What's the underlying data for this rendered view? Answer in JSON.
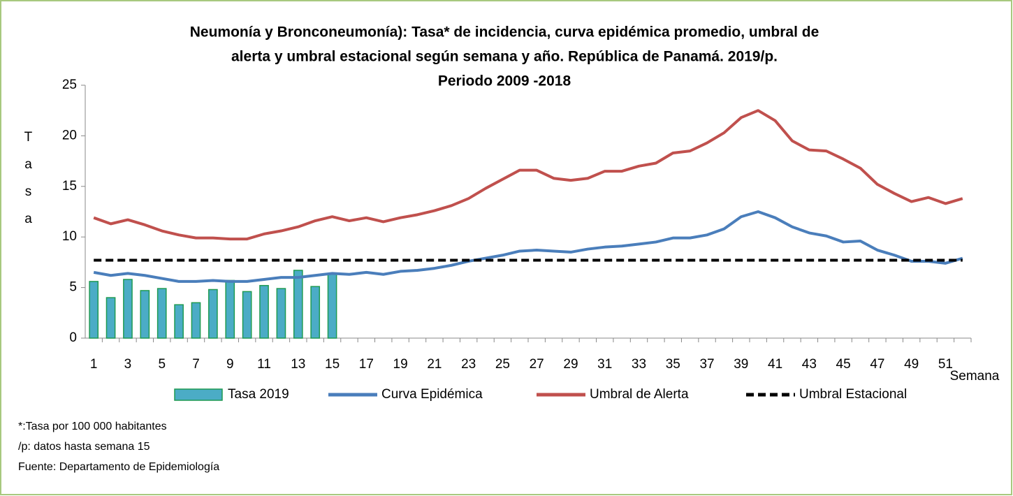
{
  "chart_data": {
    "type": "combo",
    "title": [
      "Neumonía y Bronconeumonía): Tasa* de incidencia, curva epidémica promedio, umbral de",
      "alerta  y umbral estacional según semana y año. República de Panamá. 2019/p.",
      "Periodo 2009 -2018"
    ],
    "y_label": "Tasa",
    "x_label": "Semana",
    "categories": [
      "1",
      null,
      "3",
      null,
      "5",
      null,
      "7",
      null,
      "9",
      null,
      "11",
      null,
      "13",
      null,
      "15",
      null,
      "17",
      null,
      "19",
      null,
      "21",
      null,
      "23",
      null,
      "25",
      null,
      "27",
      null,
      "29",
      null,
      "31",
      null,
      "33",
      null,
      "35",
      null,
      "37",
      null,
      "39",
      null,
      "41",
      null,
      "43",
      null,
      "45",
      null,
      "47",
      null,
      "49",
      null,
      "51",
      null
    ],
    "series": [
      {
        "name": "Tasa 2019",
        "type": "bar",
        "color": "#4bacc6",
        "edge": "#1f9a52",
        "values": [
          5.6,
          4.0,
          5.8,
          4.7,
          4.9,
          3.3,
          3.5,
          4.8,
          5.7,
          4.6,
          5.2,
          4.9,
          6.7,
          5.1,
          6.3,
          null,
          null,
          null,
          null,
          null,
          null,
          null,
          null,
          null,
          null,
          null,
          null,
          null,
          null,
          null,
          null,
          null,
          null,
          null,
          null,
          null,
          null,
          null,
          null,
          null,
          null,
          null,
          null,
          null,
          null,
          null,
          null,
          null,
          null,
          null,
          null,
          null
        ]
      },
      {
        "name": "Curva Epidémica",
        "type": "line",
        "color": "#4a7ebb",
        "values": [
          6.5,
          6.2,
          6.4,
          6.2,
          5.9,
          5.6,
          5.6,
          5.7,
          5.6,
          5.6,
          5.8,
          6.0,
          6.0,
          6.2,
          6.4,
          6.3,
          6.5,
          6.3,
          6.6,
          6.7,
          6.9,
          7.2,
          7.6,
          7.9,
          8.2,
          8.6,
          8.7,
          8.6,
          8.5,
          8.8,
          9.0,
          9.1,
          9.3,
          9.5,
          9.9,
          9.9,
          10.2,
          10.8,
          12.0,
          12.5,
          11.9,
          11.0,
          10.4,
          10.1,
          9.5,
          9.6,
          8.7,
          8.2,
          7.6,
          7.6,
          7.4,
          7.9
        ]
      },
      {
        "name": "Umbral de Alerta",
        "type": "line",
        "color": "#c0504d",
        "values": [
          11.9,
          11.3,
          11.7,
          11.2,
          10.6,
          10.2,
          9.9,
          9.9,
          9.8,
          9.8,
          10.3,
          10.6,
          11.0,
          11.6,
          12.0,
          11.6,
          11.9,
          11.5,
          11.9,
          12.2,
          12.6,
          13.1,
          13.8,
          14.8,
          15.7,
          16.6,
          16.6,
          15.8,
          15.6,
          15.8,
          16.5,
          16.5,
          17.0,
          17.3,
          18.3,
          18.5,
          19.3,
          20.3,
          21.8,
          22.5,
          21.5,
          19.5,
          18.6,
          18.5,
          17.7,
          16.8,
          15.2,
          14.3,
          13.5,
          13.9,
          13.3,
          13.8
        ]
      },
      {
        "name": "Umbral Estacional",
        "type": "line",
        "color": "#000000",
        "dashed": true,
        "values": [
          7.7,
          7.7,
          7.7,
          7.7,
          7.7,
          7.7,
          7.7,
          7.7,
          7.7,
          7.7,
          7.7,
          7.7,
          7.7,
          7.7,
          7.7,
          7.7,
          7.7,
          7.7,
          7.7,
          7.7,
          7.7,
          7.7,
          7.7,
          7.7,
          7.7,
          7.7,
          7.7,
          7.7,
          7.7,
          7.7,
          7.7,
          7.7,
          7.7,
          7.7,
          7.7,
          7.7,
          7.7,
          7.7,
          7.7,
          7.7,
          7.7,
          7.7,
          7.7,
          7.7,
          7.7,
          7.7,
          7.7,
          7.7,
          7.7,
          7.7,
          7.7,
          7.7
        ]
      }
    ],
    "ylim": [
      0,
      25
    ],
    "yticks": [
      0,
      5,
      10,
      15,
      20,
      25
    ],
    "grid": false,
    "legend": "bottom",
    "notes": [
      "*:Tasa por 100 000 habitantes",
      "/p: datos hasta semana  15",
      "Fuente: Departamento de Epidemiología"
    ]
  }
}
